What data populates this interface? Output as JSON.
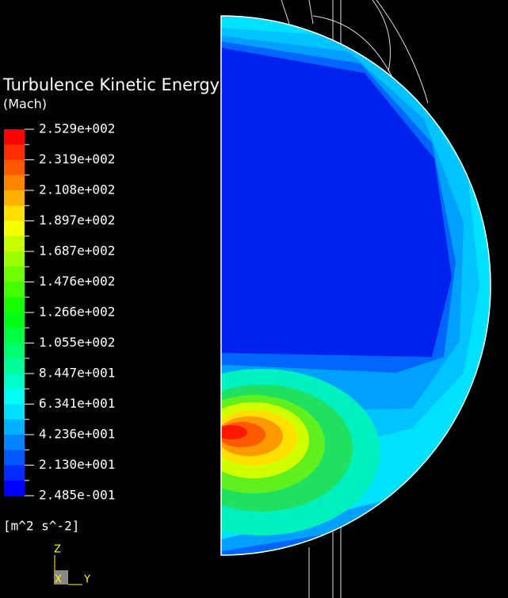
{
  "legend": {
    "title": "Turbulence Kinetic Energy",
    "subtitle": "(Mach)",
    "labels": [
      "2.529e+002",
      "2.319e+002",
      "2.108e+002",
      "1.897e+002",
      "1.687e+002",
      "1.476e+002",
      "1.266e+002",
      "1.055e+002",
      "8.447e+001",
      "6.341e+001",
      "4.236e+001",
      "2.130e+001",
      "2.485e-001"
    ],
    "units": "[m^2 s^-2]"
  },
  "axes": {
    "z": "Z",
    "x": "X",
    "y": "Y"
  }
}
